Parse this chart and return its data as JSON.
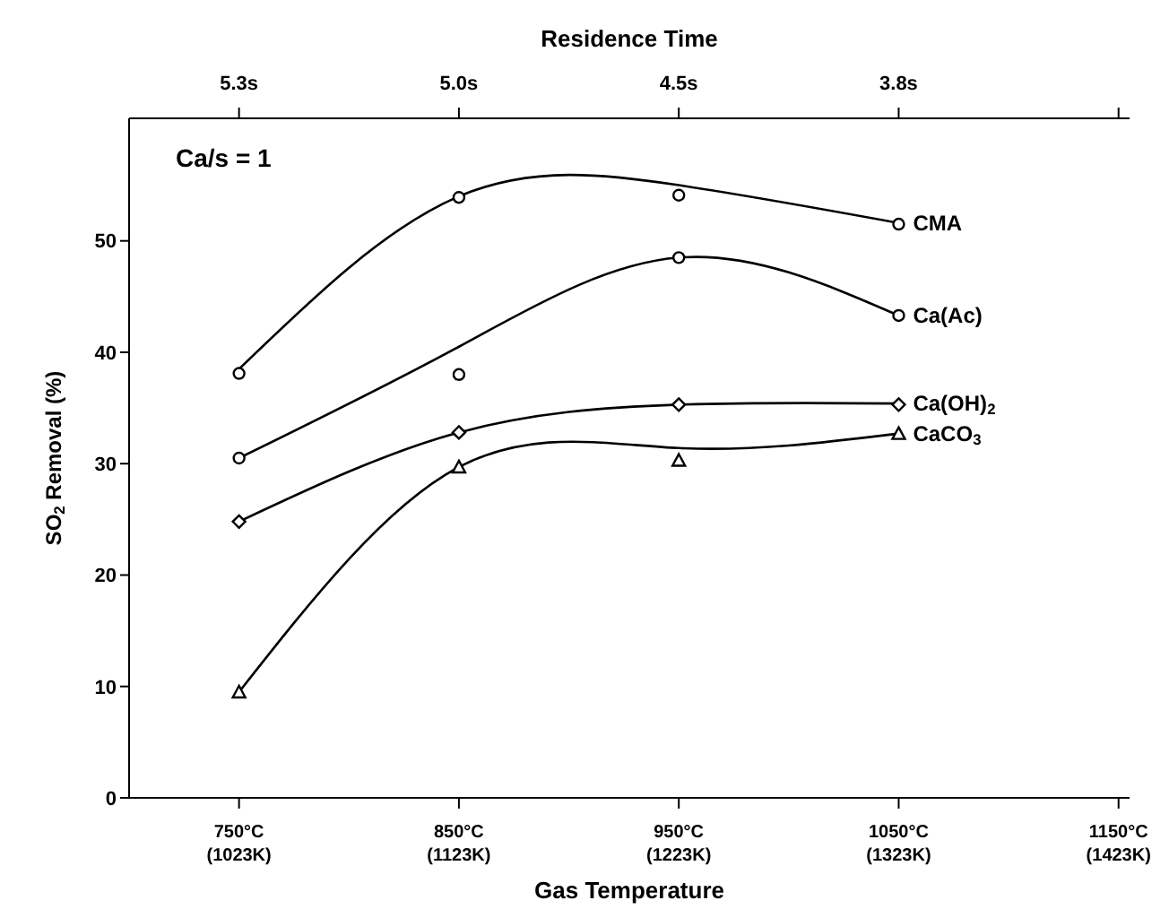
{
  "chart_data": {
    "type": "scatter",
    "xlabel": "Gas Temperature",
    "x2label": "Residence Time",
    "ylabel": "SO$_{2}$ Removal (%)",
    "annotations": [
      "Ca/s = 1",
      {
        "text": "5.3s",
        "x": "750°C (1023K)"
      },
      {
        "text": "5.0s",
        "x": "850°C (1123K)"
      },
      {
        "text": "4.5s",
        "x": "950°C (1223K)"
      },
      {
        "text": "3.8s",
        "x": "1050°C (1323K)"
      }
    ],
    "categories": [
      "750°C (1023K)",
      "850°C (1123K)",
      "950°C (1223K)",
      "1050°C (1323K)",
      "1150°C (1423K)"
    ],
    "ylim": [
      0,
      61
    ],
    "yticks": [
      0,
      10,
      20,
      30,
      40,
      50
    ],
    "grid": false,
    "legend": false,
    "line_style": "solid",
    "series": [
      {
        "marker": "circle",
        "color": "#000000",
        "values": [
          38.1,
          53.9,
          54.1,
          51.5,
          null
        ]
      },
      {
        "marker": "circle",
        "color": "#000000",
        "values": [
          30.5,
          38.0,
          48.5,
          43.3,
          null
        ]
      },
      {
        "marker": "diamond",
        "color": "#000000",
        "values": [
          24.8,
          32.8,
          35.3,
          35.3,
          null
        ]
      },
      {
        "marker": "triangle",
        "color": "#000000",
        "values": [
          9.5,
          29.7,
          30.3,
          32.7,
          null
        ]
      },
      {
        "type": "line",
        "name": "CMA",
        "marker": "none",
        "color": "#000000",
        "values": [
          38.5,
          54.0,
          55.0,
          51.6,
          null
        ]
      },
      {
        "type": "line",
        "name": "Ca(Ac)",
        "marker": "none",
        "color": "#000000",
        "values": [
          30.5,
          40.5,
          48.5,
          43.3,
          null
        ]
      },
      {
        "type": "line",
        "name": "Ca(OH)$_{2}$",
        "marker": "none",
        "color": "#000000",
        "values": [
          24.8,
          32.8,
          35.3,
          35.4,
          null
        ]
      },
      {
        "type": "line",
        "name": "CaCO$_{3}$",
        "marker": "none",
        "color": "#000000",
        "values": [
          9.5,
          29.7,
          31.4,
          32.7,
          null
        ]
      }
    ]
  }
}
